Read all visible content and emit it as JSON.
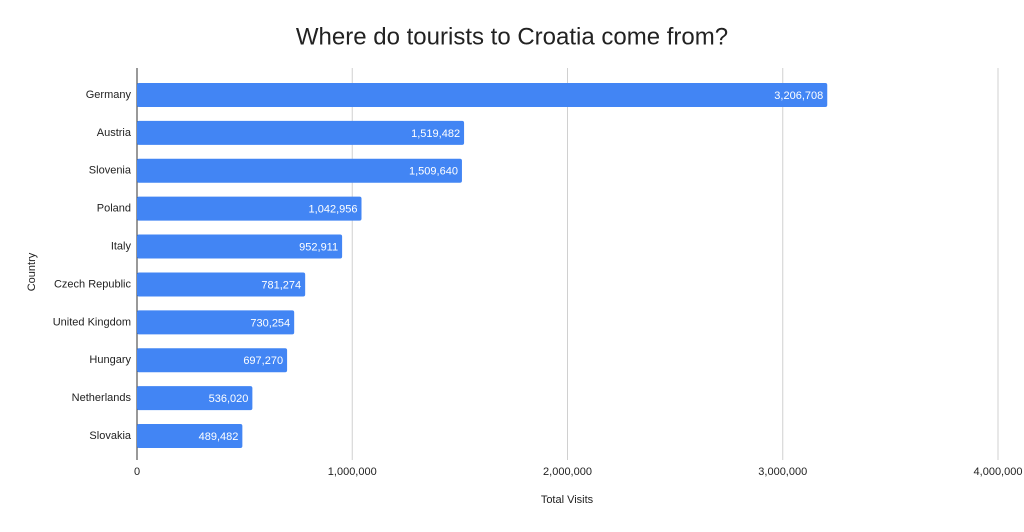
{
  "chart_data": {
    "type": "bar",
    "title": "Where do tourists to Croatia come from?",
    "x_label": "Total Visits",
    "y_label": "Country",
    "categories": [
      "Germany",
      "Austria",
      "Slovenia",
      "Poland",
      "Italy",
      "Czech Republic",
      "United Kingdom",
      "Hungary",
      "Netherlands",
      "Slovakia"
    ],
    "values": [
      3206708,
      1519482,
      1509640,
      1042956,
      952911,
      781274,
      730254,
      697270,
      536020,
      489482
    ],
    "value_labels": [
      "3,206,708",
      "1,519,482",
      "1,509,640",
      "1,042,956",
      "952,911",
      "781,274",
      "730,254",
      "697,270",
      "536,020",
      "489,482"
    ],
    "color": "#4285f4",
    "xlim": [
      0,
      4000000
    ],
    "xticks": [
      0,
      {
        "value": 1000000,
        "label": "1,000,000"
      },
      {
        "value": 2000000,
        "label": "2,000,000"
      },
      {
        "value": 3000000,
        "label": "3,000,000"
      },
      {
        "value": 4000000,
        "label": "4,000,000"
      }
    ],
    "grid": true
  }
}
